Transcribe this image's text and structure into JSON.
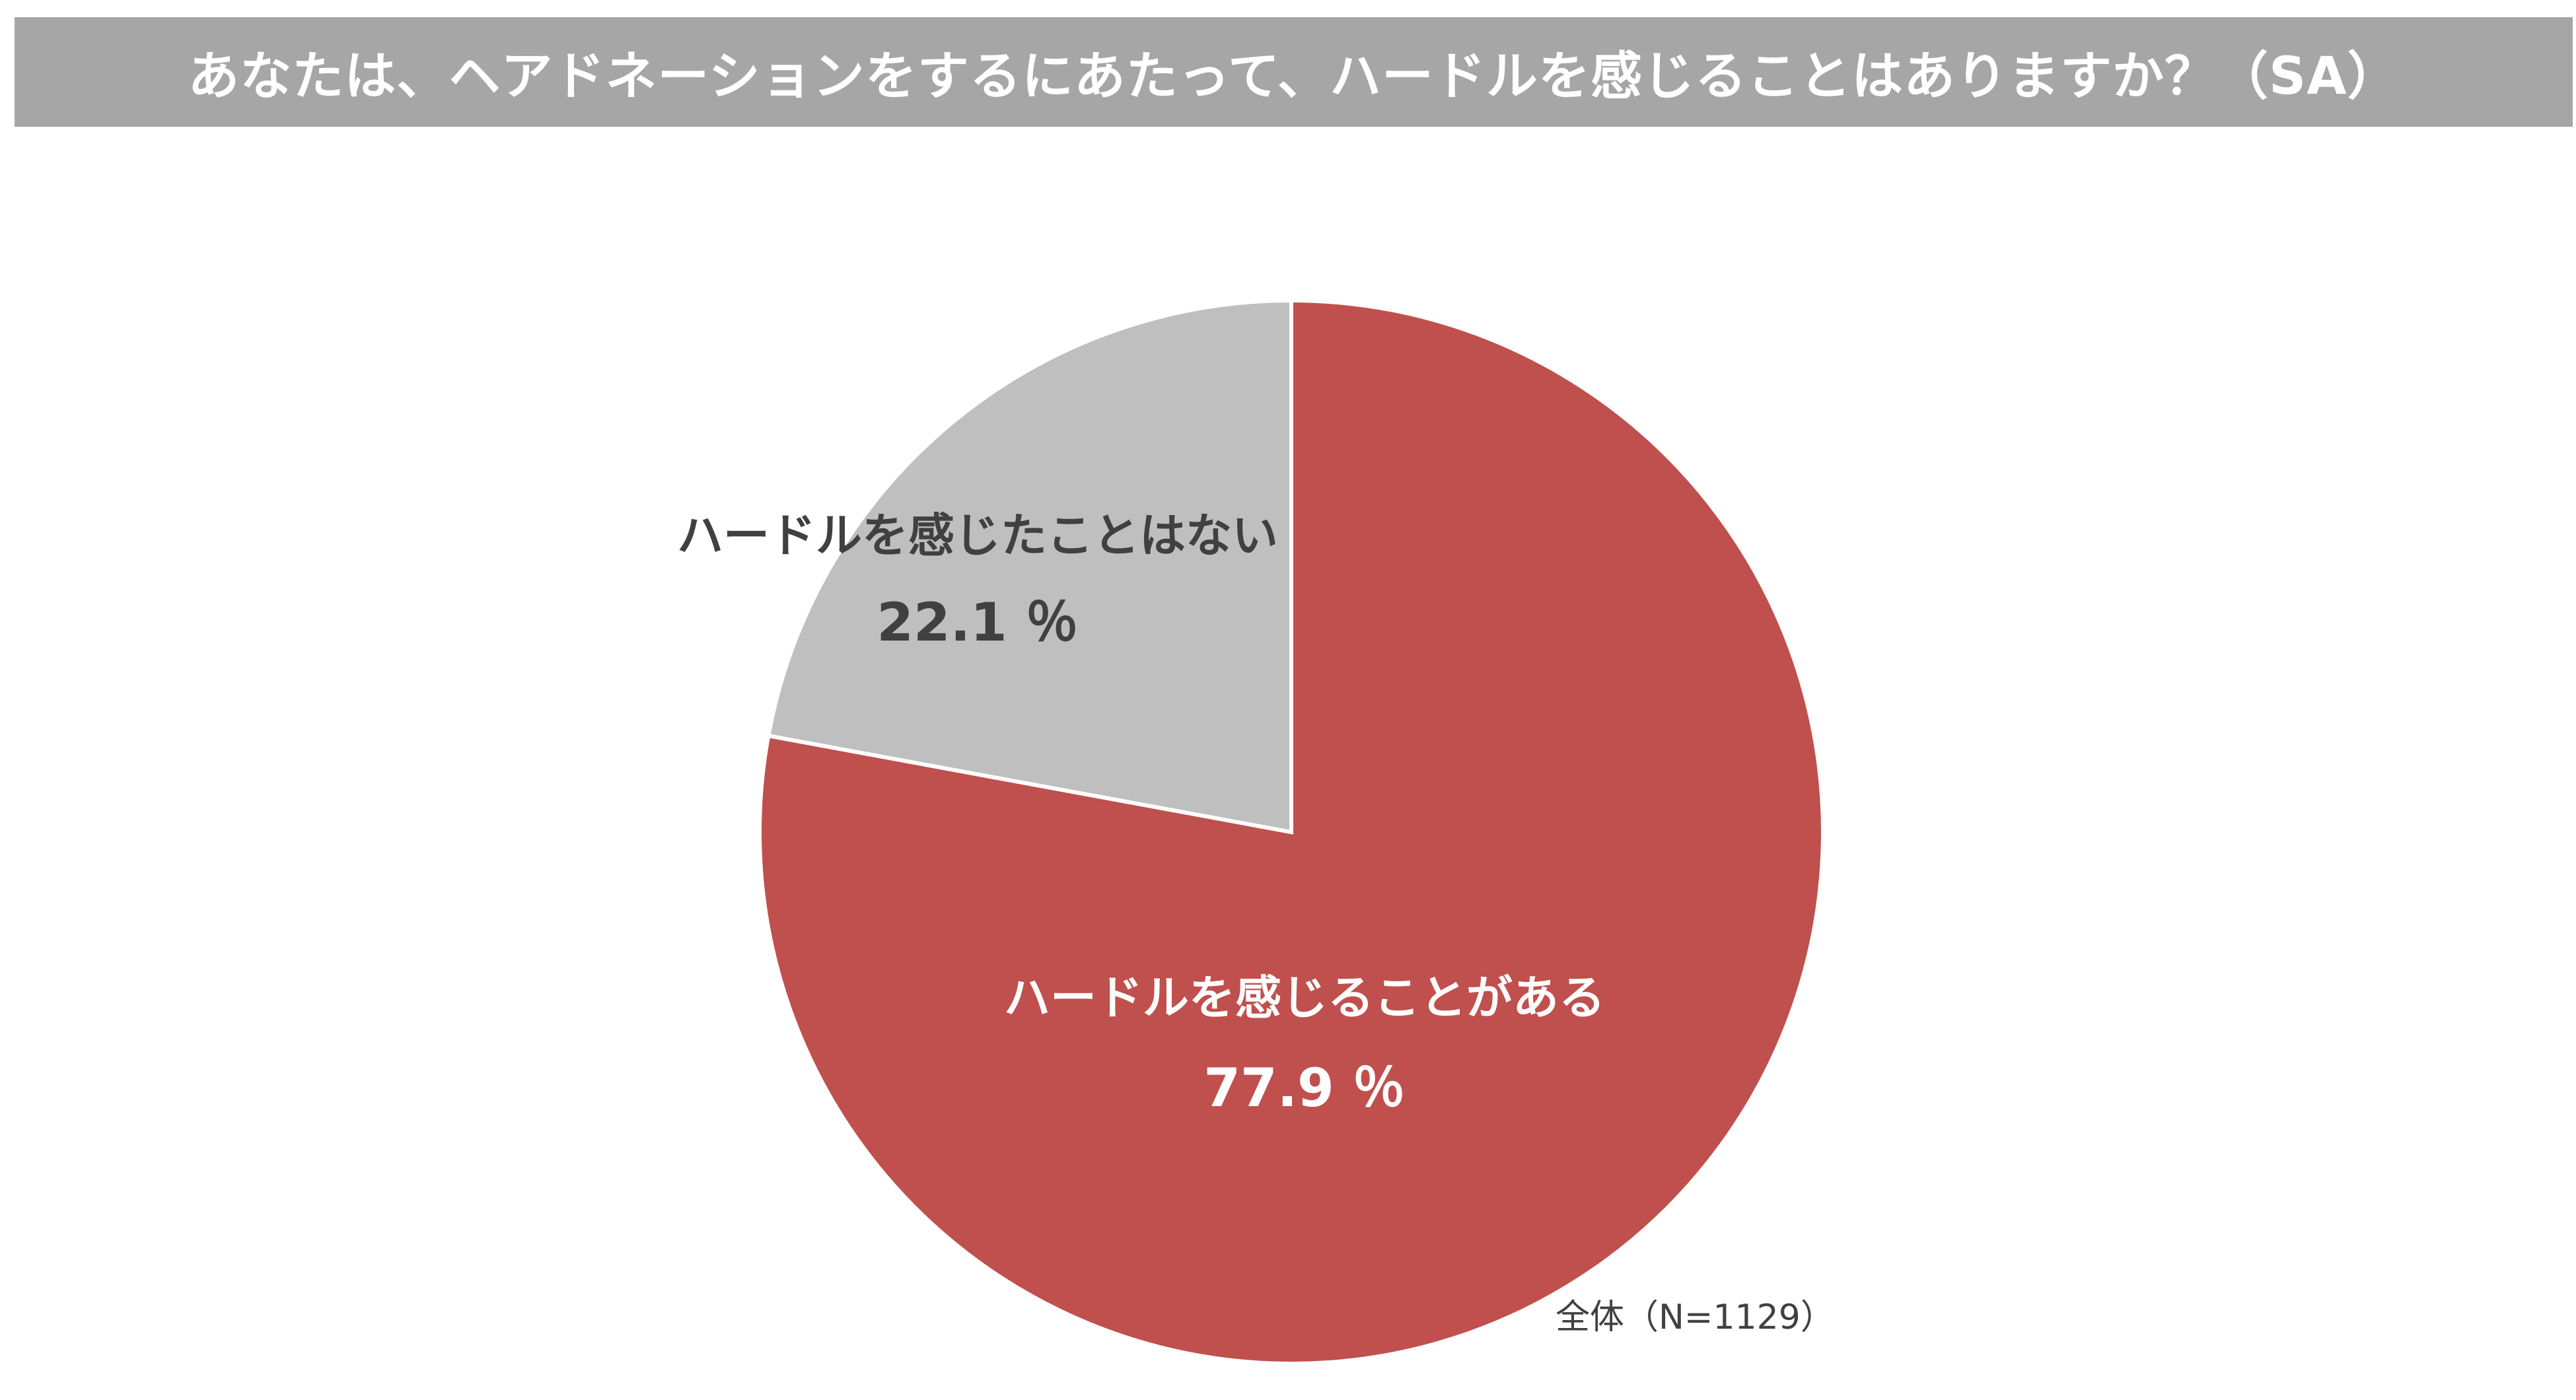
{
  "title": "あなたは、ヘアドネーションをするにあたって、ハードルを感じることはありますか？（SA）",
  "note": "全体（N=1129）",
  "colors": {
    "title_bar": "#a6a6a6",
    "slice_yes": "#c0504d",
    "slice_no": "#bfbfbf",
    "label_on_red": "#ffffff",
    "label_on_gray": "#404040"
  },
  "chart_data": {
    "type": "pie",
    "start": "12 o'clock",
    "direction": "clockwise",
    "slices": [
      {
        "label": "ハードルを感じることがある",
        "value": 77.9,
        "value_text": "77.9 ％",
        "color": "#c0504d",
        "text_color": "#ffffff"
      },
      {
        "label": "ハードルを感じたことはない",
        "value": 22.1,
        "value_text": "22.1 ％",
        "color": "#bfbfbf",
        "text_color": "#404040"
      }
    ]
  }
}
